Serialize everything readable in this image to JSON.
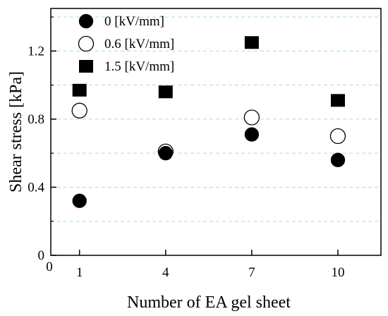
{
  "chart_data": {
    "type": "scatter",
    "xlabel": "Number of EA gel sheet",
    "ylabel": "Shear stress [kPa]",
    "x_origin_label": "0",
    "x_ticks": [
      "1",
      "4",
      "7",
      "10"
    ],
    "y_ticks": [
      "0",
      "0.4",
      "0.8",
      "1.2"
    ],
    "xlim": [
      0,
      11.5
    ],
    "ylim": [
      0,
      1.45
    ],
    "grid": "horizontal dashed",
    "legend_position": "top-left",
    "series": [
      {
        "name": "0 [kV/mm]",
        "marker": "filled-circle",
        "x": [
          1,
          4,
          7,
          10
        ],
        "y": [
          0.32,
          0.6,
          0.71,
          0.56
        ]
      },
      {
        "name": "0.6 [kV/mm]",
        "marker": "open-circle",
        "x": [
          1,
          4,
          7,
          10
        ],
        "y": [
          0.85,
          0.61,
          0.81,
          0.7
        ]
      },
      {
        "name": "1.5 [kV/mm]",
        "marker": "filled-square",
        "x": [
          1,
          4,
          7,
          10
        ],
        "y": [
          0.97,
          0.96,
          1.25,
          0.91
        ]
      }
    ],
    "colors": {
      "marker": "#000000",
      "grid": "#a8dede",
      "axis": "#000000"
    }
  }
}
